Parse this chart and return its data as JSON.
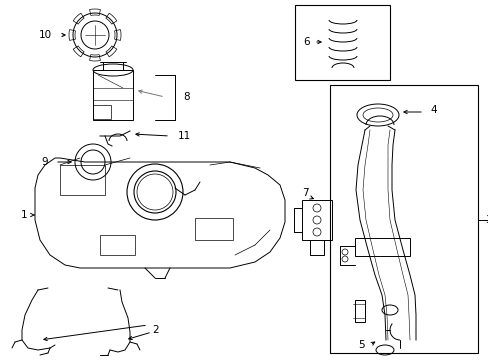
{
  "bg_color": "#ffffff",
  "line_color": "#000000",
  "gray_color": "#777777",
  "fig_width": 4.89,
  "fig_height": 3.6,
  "dpi": 100,
  "label_fontsize": 7.5
}
